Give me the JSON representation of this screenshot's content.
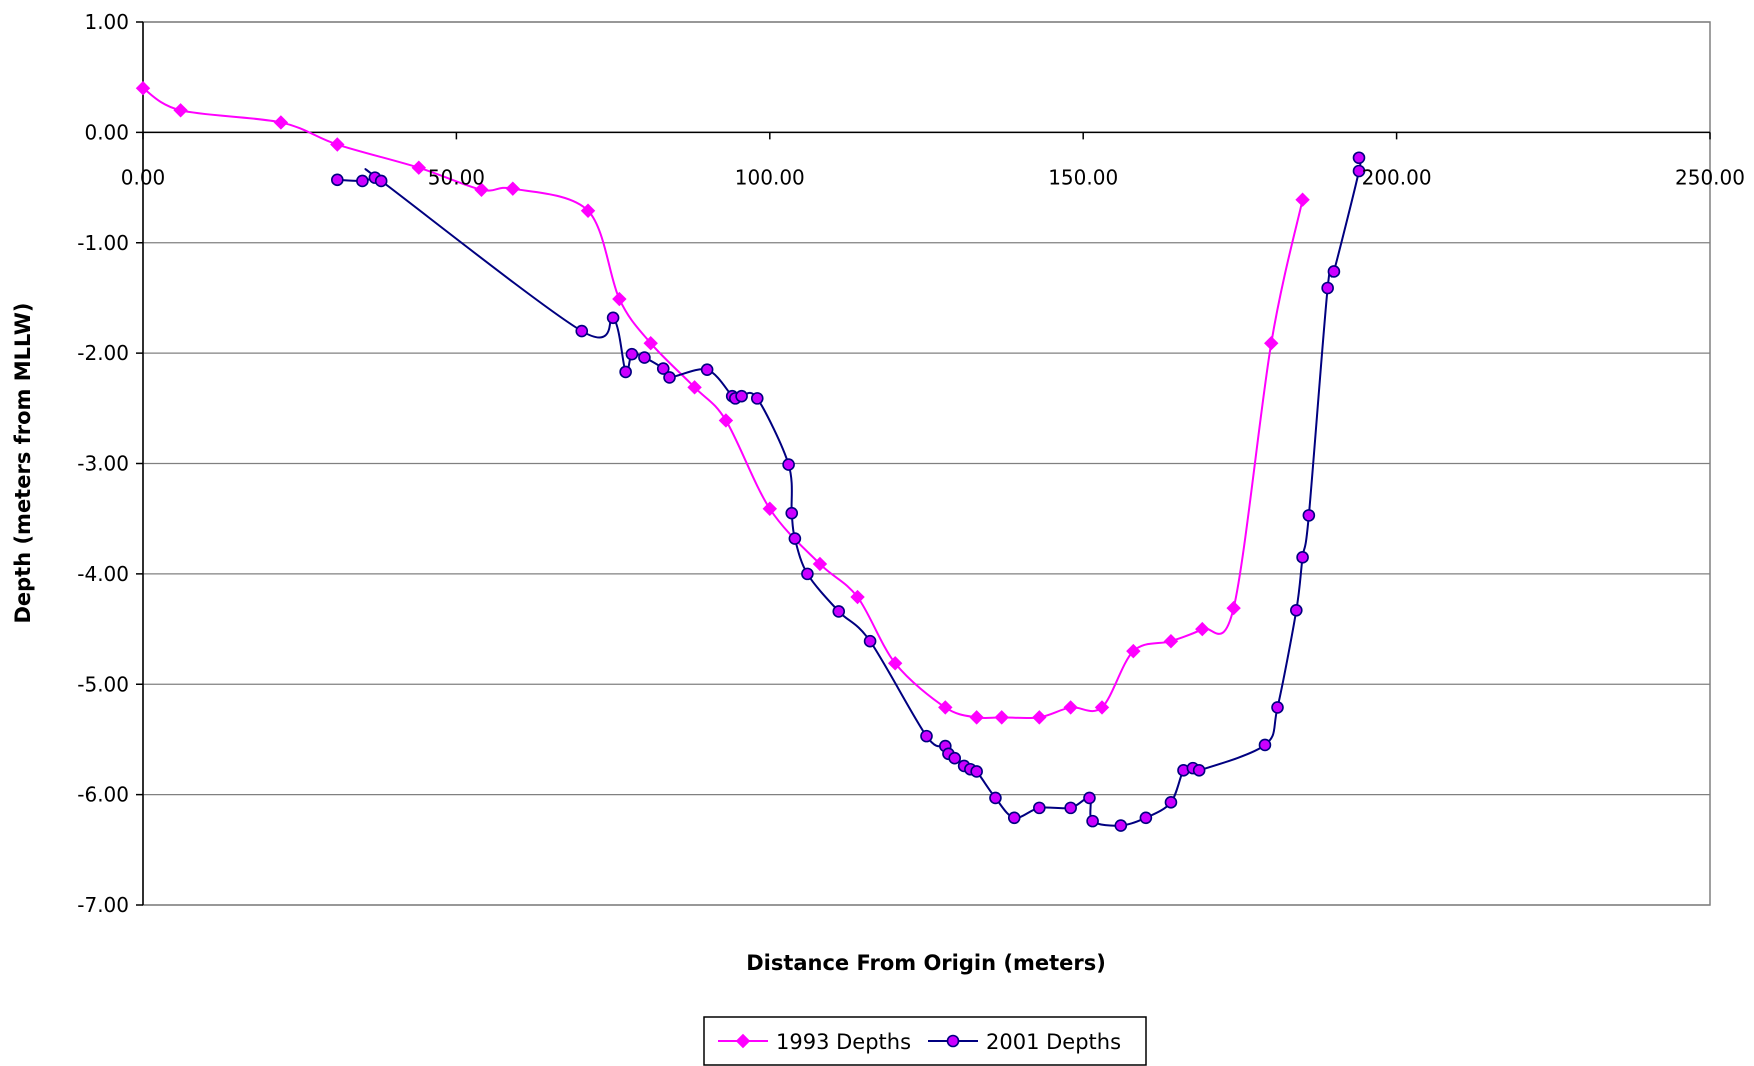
{
  "chart_data": {
    "type": "line",
    "title": "",
    "xlabel": "Distance From Origin (meters)",
    "ylabel": "Depth (meters from MLLW)",
    "xlim": [
      0,
      250
    ],
    "ylim": [
      -7,
      1
    ],
    "x_ticks": [
      "0.00",
      "50.00",
      "100.00",
      "150.00",
      "200.00",
      "250.00"
    ],
    "y_ticks": [
      "1.00",
      "0.00",
      "-1.00",
      "-2.00",
      "-3.00",
      "-4.00",
      "-5.00",
      "-6.00",
      "-7.00"
    ],
    "grid": "horizontal",
    "legend_position": "bottom",
    "series": [
      {
        "name": "1993 Depths",
        "color": "#ff00ff",
        "marker": "diamond",
        "points": [
          [
            0,
            0.4
          ],
          [
            6,
            0.2
          ],
          [
            22,
            0.09
          ],
          [
            31,
            -0.11
          ],
          [
            44,
            -0.32
          ],
          [
            54,
            -0.52
          ],
          [
            59,
            -0.51
          ],
          [
            71,
            -0.71
          ],
          [
            76,
            -1.51
          ],
          [
            81,
            -1.91
          ],
          [
            88,
            -2.31
          ],
          [
            93,
            -2.61
          ],
          [
            100,
            -3.41
          ],
          [
            108,
            -3.91
          ],
          [
            114,
            -4.21
          ],
          [
            120,
            -4.81
          ],
          [
            128,
            -5.21
          ],
          [
            133,
            -5.3
          ],
          [
            137,
            -5.3
          ],
          [
            143,
            -5.3
          ],
          [
            148,
            -5.21
          ],
          [
            153,
            -5.21
          ],
          [
            158,
            -4.7
          ],
          [
            164,
            -4.61
          ],
          [
            169,
            -4.5
          ],
          [
            174,
            -4.31
          ],
          [
            180,
            -1.91
          ],
          [
            185,
            -0.61
          ]
        ]
      },
      {
        "name": "2001 Depths",
        "color": "#000080",
        "marker": "circle",
        "points": [
          [
            31,
            -0.43
          ],
          [
            35,
            -0.44
          ],
          [
            37,
            -0.41
          ],
          [
            38,
            -0.44
          ],
          [
            70,
            -1.8
          ],
          [
            75,
            -1.68
          ],
          [
            77,
            -2.17
          ],
          [
            78,
            -2.01
          ],
          [
            80,
            -2.04
          ],
          [
            83,
            -2.14
          ],
          [
            84,
            -2.22
          ],
          [
            90,
            -2.15
          ],
          [
            94,
            -2.39
          ],
          [
            94.5,
            -2.41
          ],
          [
            95.5,
            -2.39
          ],
          [
            98,
            -2.41
          ],
          [
            103,
            -3.01
          ],
          [
            103.5,
            -3.45
          ],
          [
            104,
            -3.68
          ],
          [
            106,
            -4.0
          ],
          [
            111,
            -4.34
          ],
          [
            116,
            -4.61
          ],
          [
            125,
            -5.47
          ],
          [
            128,
            -5.56
          ],
          [
            128.5,
            -5.63
          ],
          [
            129.5,
            -5.67
          ],
          [
            131,
            -5.74
          ],
          [
            132,
            -5.77
          ],
          [
            133,
            -5.79
          ],
          [
            136,
            -6.03
          ],
          [
            139,
            -6.21
          ],
          [
            143,
            -6.12
          ],
          [
            148,
            -6.12
          ],
          [
            151,
            -6.03
          ],
          [
            151.5,
            -6.24
          ],
          [
            156,
            -6.28
          ],
          [
            160,
            -6.21
          ],
          [
            164,
            -6.07
          ],
          [
            166,
            -5.78
          ],
          [
            167.5,
            -5.76
          ],
          [
            168.5,
            -5.78
          ],
          [
            179,
            -5.55
          ],
          [
            181,
            -5.21
          ],
          [
            184,
            -4.33
          ],
          [
            185,
            -3.85
          ],
          [
            186,
            -3.47
          ],
          [
            189,
            -1.41
          ],
          [
            190,
            -1.26
          ],
          [
            194,
            -0.35
          ],
          [
            194,
            -0.23
          ]
        ]
      }
    ]
  }
}
